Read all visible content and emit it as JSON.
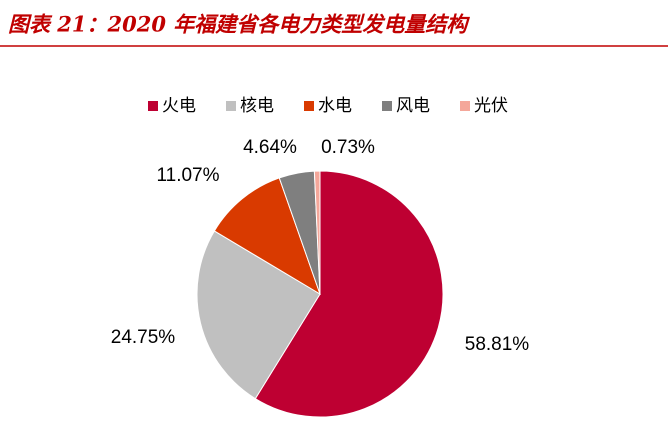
{
  "chart_data": {
    "type": "pie",
    "title": "图表 21：2020 年福建省各电力类型发电量结构",
    "categories": [
      "火电",
      "核电",
      "水电",
      "风电",
      "光伏"
    ],
    "values": [
      58.81,
      24.75,
      11.07,
      4.64,
      0.73
    ],
    "value_labels": [
      "58.81%",
      "24.75%",
      "11.07%",
      "4.64%",
      "0.73%"
    ],
    "colors": [
      "#BE0032",
      "#C0C0C0",
      "#D93A00",
      "#7F7F7F",
      "#F4A79A"
    ],
    "legend": "top"
  }
}
